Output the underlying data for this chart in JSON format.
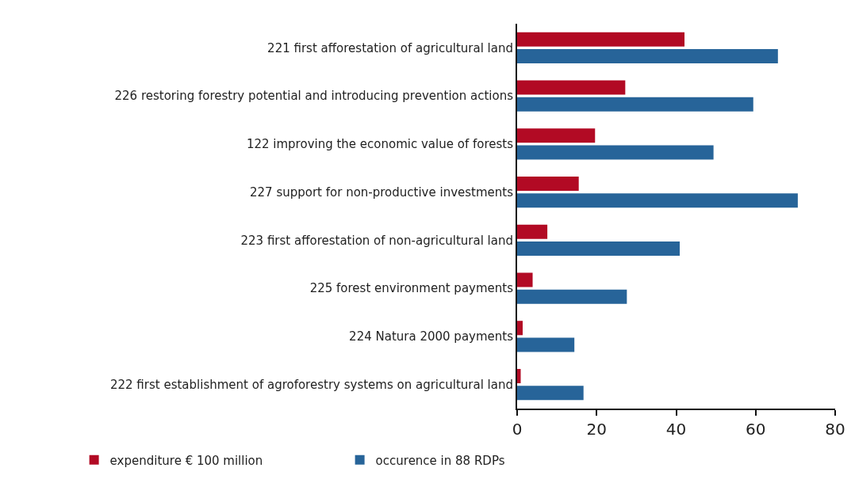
{
  "chart_data": {
    "type": "bar",
    "orientation": "horizontal",
    "categories": [
      "221 first afforestation of agricultural land",
      "226 restoring forestry potential and introducing prevention actions",
      "122 improving the economic value of forests",
      "227 support for non-productive investments",
      "223 first afforestation of non-agricultural land",
      "225 forest environment payments",
      "224 Natura 2000 payments",
      "222 first establishment of agroforestry systems on agricultural land"
    ],
    "series": [
      {
        "name": "expenditure € 100 million",
        "color": "#b20a24",
        "values": [
          42.1,
          27.2,
          19.6,
          15.5,
          7.6,
          3.9,
          1.4,
          0.9
        ]
      },
      {
        "name": "occurence in 88 RDPs",
        "color": "#276499",
        "values": [
          65.6,
          59.4,
          49.4,
          70.6,
          40.9,
          27.6,
          14.4,
          16.7
        ]
      }
    ],
    "xlim": [
      0,
      80
    ],
    "xticks": [
      0,
      20,
      40,
      60,
      80
    ],
    "legend": "bottom left"
  }
}
